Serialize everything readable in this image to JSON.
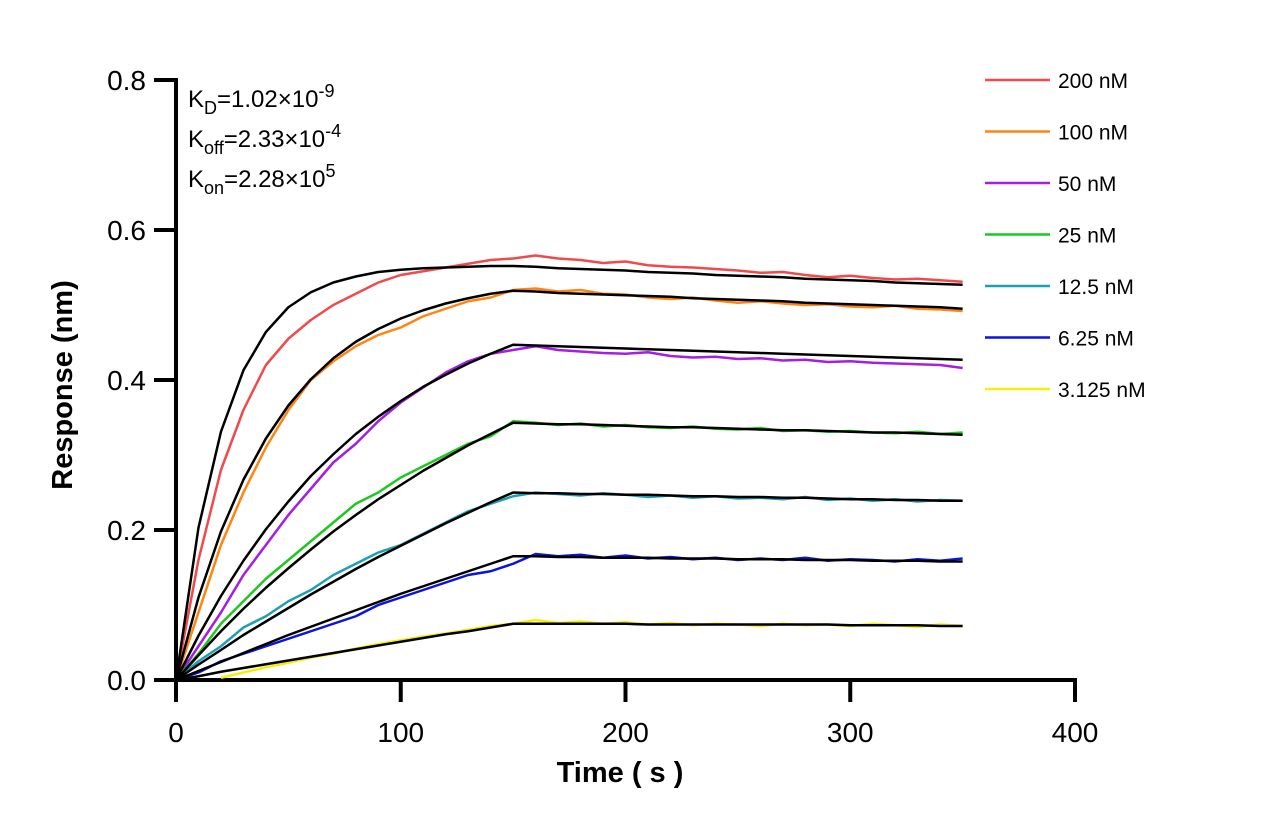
{
  "chart_data": {
    "type": "line",
    "xlabel": "Time ( s )",
    "ylabel": "Response (nm)",
    "annotations": [
      {
        "main": "K",
        "sub": "D",
        "text": "=1.02×10",
        "sup": "-9"
      },
      {
        "main": "K",
        "sub": "off",
        "text": "=2.33×10",
        "sup": "-4"
      },
      {
        "main": "K",
        "sub": "on",
        "text": "=2.28×10",
        "sup": "5"
      }
    ],
    "xlim": [
      0,
      400
    ],
    "xticks": [
      0,
      100,
      200,
      300,
      400
    ],
    "ylim": [
      0,
      0.8
    ],
    "yticks": [
      {
        "value": 0,
        "label": "0.0"
      },
      0.2,
      0.4,
      0.6,
      0.8
    ],
    "legend": "upper-right",
    "x": [
      0,
      10,
      20,
      30,
      40,
      50,
      60,
      70,
      80,
      90,
      100,
      110,
      120,
      130,
      140,
      150,
      160,
      170,
      180,
      190,
      200,
      210,
      220,
      230,
      240,
      250,
      260,
      270,
      280,
      290,
      300,
      310,
      320,
      330,
      340,
      350
    ],
    "series": [
      {
        "name": "200 nM",
        "color": "#f04a4a",
        "values": [
          0,
          0.16,
          0.28,
          0.36,
          0.42,
          0.455,
          0.48,
          0.5,
          0.515,
          0.53,
          0.54,
          0.545,
          0.55,
          0.555,
          0.56,
          0.562,
          0.566,
          0.562,
          0.56,
          0.556,
          0.558,
          0.553,
          0.551,
          0.55,
          0.548,
          0.546,
          0.543,
          0.544,
          0.54,
          0.537,
          0.539,
          0.536,
          0.534,
          0.535,
          0.533,
          0.531
        ]
      },
      {
        "name": "100 nM",
        "color": "#ff8412",
        "values": [
          0,
          0.09,
          0.18,
          0.25,
          0.31,
          0.36,
          0.4,
          0.425,
          0.445,
          0.46,
          0.47,
          0.485,
          0.495,
          0.505,
          0.51,
          0.52,
          0.522,
          0.518,
          0.52,
          0.515,
          0.514,
          0.51,
          0.508,
          0.51,
          0.506,
          0.503,
          0.505,
          0.502,
          0.5,
          0.501,
          0.498,
          0.497,
          0.499,
          0.495,
          0.494,
          0.492
        ]
      },
      {
        "name": "50 nM",
        "color": "#a41ee6",
        "values": [
          0,
          0.045,
          0.09,
          0.14,
          0.18,
          0.22,
          0.255,
          0.29,
          0.315,
          0.345,
          0.37,
          0.39,
          0.41,
          0.425,
          0.435,
          0.44,
          0.445,
          0.44,
          0.438,
          0.436,
          0.435,
          0.437,
          0.432,
          0.43,
          0.431,
          0.428,
          0.429,
          0.426,
          0.427,
          0.424,
          0.425,
          0.423,
          0.422,
          0.421,
          0.42,
          0.416
        ]
      },
      {
        "name": "25 nM",
        "color": "#1ec81e",
        "values": [
          0,
          0.035,
          0.075,
          0.105,
          0.135,
          0.16,
          0.185,
          0.21,
          0.235,
          0.25,
          0.27,
          0.285,
          0.3,
          0.315,
          0.325,
          0.345,
          0.343,
          0.34,
          0.342,
          0.338,
          0.34,
          0.337,
          0.336,
          0.338,
          0.335,
          0.334,
          0.336,
          0.332,
          0.333,
          0.331,
          0.332,
          0.33,
          0.329,
          0.331,
          0.328,
          0.33
        ]
      },
      {
        "name": "12.5 nM",
        "color": "#1ea0b4",
        "values": [
          0,
          0.025,
          0.045,
          0.07,
          0.085,
          0.105,
          0.12,
          0.14,
          0.155,
          0.17,
          0.18,
          0.195,
          0.21,
          0.225,
          0.235,
          0.245,
          0.25,
          0.248,
          0.246,
          0.249,
          0.247,
          0.244,
          0.246,
          0.243,
          0.245,
          0.242,
          0.243,
          0.241,
          0.244,
          0.24,
          0.242,
          0.239,
          0.241,
          0.238,
          0.24,
          0.239
        ]
      },
      {
        "name": "6.25 nM",
        "color": "#0a14dc",
        "values": [
          0,
          0.01,
          0.025,
          0.035,
          0.045,
          0.055,
          0.065,
          0.075,
          0.085,
          0.1,
          0.11,
          0.12,
          0.13,
          0.14,
          0.145,
          0.155,
          0.168,
          0.165,
          0.167,
          0.163,
          0.166,
          0.162,
          0.164,
          0.161,
          0.163,
          0.16,
          0.162,
          0.16,
          0.163,
          0.159,
          0.161,
          0.16,
          0.158,
          0.161,
          0.159,
          0.162
        ]
      },
      {
        "name": "3.125 nM",
        "color": "#f5f00a",
        "values": [
          null,
          null,
          0.003,
          0.01,
          0.017,
          0.023,
          0.03,
          0.035,
          0.042,
          0.048,
          0.053,
          0.058,
          0.062,
          0.067,
          0.072,
          0.075,
          0.08,
          0.076,
          0.078,
          0.075,
          0.077,
          0.074,
          0.076,
          0.073,
          0.075,
          0.074,
          0.072,
          0.075,
          0.073,
          0.074,
          0.072,
          0.075,
          0.073,
          0.071,
          0.074,
          0.072
        ]
      }
    ],
    "fits": [
      {
        "color": "#000000",
        "values": [
          0,
          0.203,
          0.331,
          0.413,
          0.464,
          0.497,
          0.517,
          0.53,
          0.538,
          0.544,
          0.547,
          0.549,
          0.55,
          0.551,
          0.552,
          0.552,
          0.551,
          0.549,
          0.548,
          0.547,
          0.546,
          0.544,
          0.543,
          0.542,
          0.54,
          0.539,
          0.538,
          0.537,
          0.535,
          0.534,
          0.533,
          0.532,
          0.53,
          0.529,
          0.528,
          0.527
        ]
      },
      {
        "color": "#000000",
        "values": [
          0,
          0.11,
          0.198,
          0.267,
          0.322,
          0.366,
          0.401,
          0.429,
          0.451,
          0.468,
          0.482,
          0.493,
          0.502,
          0.509,
          0.515,
          0.519,
          0.518,
          0.516,
          0.515,
          0.514,
          0.513,
          0.512,
          0.511,
          0.509,
          0.508,
          0.507,
          0.506,
          0.505,
          0.503,
          0.502,
          0.501,
          0.5,
          0.499,
          0.498,
          0.497,
          0.495
        ]
      },
      {
        "color": "#000000",
        "values": [
          0,
          0.059,
          0.112,
          0.159,
          0.201,
          0.238,
          0.272,
          0.301,
          0.328,
          0.351,
          0.372,
          0.391,
          0.407,
          0.422,
          0.435,
          0.447,
          0.446,
          0.445,
          0.444,
          0.443,
          0.442,
          0.441,
          0.44,
          0.439,
          0.438,
          0.437,
          0.436,
          0.435,
          0.434,
          0.433,
          0.432,
          0.431,
          0.43,
          0.429,
          0.428,
          0.427
        ]
      },
      {
        "color": "#000000",
        "values": [
          0,
          0.033,
          0.065,
          0.095,
          0.123,
          0.149,
          0.174,
          0.198,
          0.22,
          0.241,
          0.26,
          0.279,
          0.296,
          0.313,
          0.328,
          0.343,
          0.342,
          0.341,
          0.341,
          0.34,
          0.339,
          0.338,
          0.337,
          0.337,
          0.336,
          0.335,
          0.334,
          0.333,
          0.333,
          0.332,
          0.331,
          0.33,
          0.33,
          0.329,
          0.328,
          0.327
        ]
      },
      {
        "color": "#000000",
        "values": [
          0,
          0.0205,
          0.04,
          0.06,
          0.078,
          0.096,
          0.114,
          0.131,
          0.148,
          0.164,
          0.179,
          0.194,
          0.209,
          0.223,
          0.237,
          0.25,
          0.249,
          0.249,
          0.248,
          0.248,
          0.247,
          0.247,
          0.246,
          0.245,
          0.245,
          0.244,
          0.244,
          0.243,
          0.243,
          0.242,
          0.241,
          0.241,
          0.24,
          0.24,
          0.239,
          0.239
        ]
      },
      {
        "color": "#000000",
        "values": [
          0,
          0.012,
          0.024,
          0.036,
          0.048,
          0.06,
          0.071,
          0.082,
          0.093,
          0.104,
          0.115,
          0.125,
          0.135,
          0.145,
          0.155,
          0.165,
          0.165,
          0.164,
          0.164,
          0.163,
          0.163,
          0.163,
          0.162,
          0.162,
          0.162,
          0.161,
          0.161,
          0.161,
          0.16,
          0.16,
          0.16,
          0.159,
          0.159,
          0.159,
          0.158,
          0.158
        ]
      },
      {
        "color": "#000000",
        "values": [
          0,
          0.005,
          0.011,
          0.016,
          0.021,
          0.026,
          0.031,
          0.036,
          0.041,
          0.046,
          0.051,
          0.056,
          0.061,
          0.065,
          0.07,
          0.075,
          0.075,
          0.075,
          0.075,
          0.075,
          0.075,
          0.074,
          0.074,
          0.074,
          0.074,
          0.074,
          0.074,
          0.074,
          0.074,
          0.074,
          0.073,
          0.073,
          0.073,
          0.073,
          0.072,
          0.072
        ]
      }
    ]
  }
}
